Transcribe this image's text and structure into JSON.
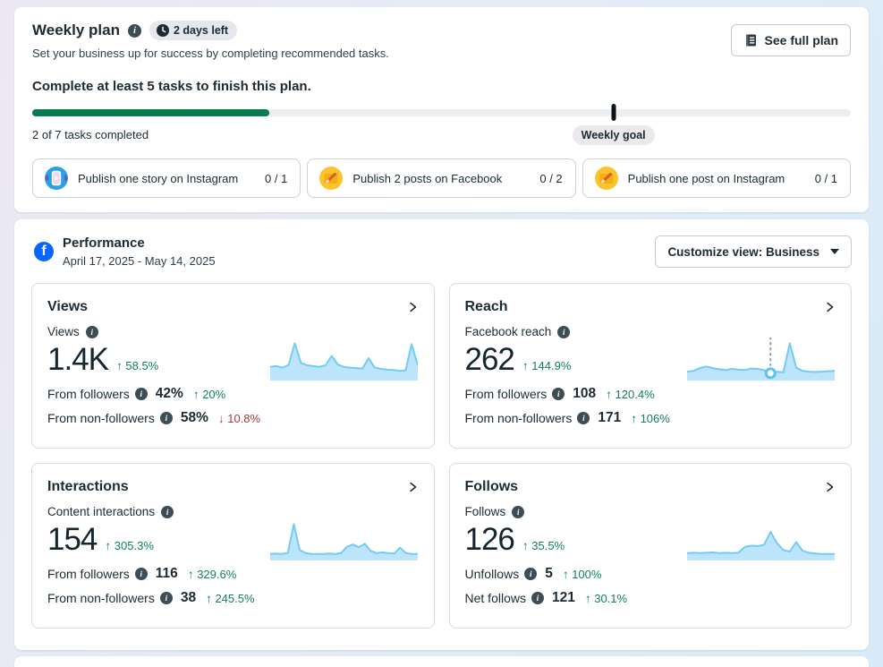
{
  "weekly_plan": {
    "title": "Weekly plan",
    "badge": "2 days left",
    "see_full_plan_label": "See full plan",
    "subtitle": "Set your business up for success by completing recommended tasks.",
    "goal_heading": "Complete at least 5 tasks to finish this plan.",
    "progress": {
      "completed": 2,
      "total": 7,
      "percent": 29,
      "goal_percent": 71,
      "status_text": "2 of 7 tasks completed",
      "goal_label": "Weekly goal"
    },
    "tasks": [
      {
        "label": "Publish one story on Instagram",
        "count": "0 / 1",
        "icon": "instagram-story-icon"
      },
      {
        "label": "Publish 2 posts on Facebook",
        "count": "0 / 2",
        "icon": "facebook-post-icon"
      },
      {
        "label": "Publish one post on Instagram",
        "count": "0 / 1",
        "icon": "instagram-post-icon"
      }
    ]
  },
  "performance": {
    "title": "Performance",
    "date_range": "April 17, 2025 - May 14, 2025",
    "customize_label": "Customize view: Business",
    "cards": [
      {
        "title": "Views",
        "metric_label": "Views",
        "value": "1.4K",
        "arrow": "↑",
        "delta": "58.5%",
        "stats": [
          {
            "label": "From followers",
            "value": "42%",
            "arrow": "↑",
            "delta": "20%",
            "dir": "up"
          },
          {
            "label": "From non-followers",
            "value": "58%",
            "arrow": "↓",
            "delta": "10.8%",
            "dir": "down"
          }
        ],
        "spark": {
          "values": [
            30,
            32,
            28,
            35,
            90,
            40,
            34,
            32,
            30,
            34,
            58,
            36,
            30,
            28,
            27,
            26,
            52,
            28,
            25,
            23,
            22,
            20,
            21,
            88,
            34
          ]
        }
      },
      {
        "title": "Reach",
        "metric_label": "Facebook reach",
        "value": "262",
        "arrow": "↑",
        "delta": "144.9%",
        "stats": [
          {
            "label": "From followers",
            "value": "108",
            "arrow": "↑",
            "delta": "120.4%",
            "dir": "up"
          },
          {
            "label": "From non-followers",
            "value": "171",
            "arrow": "↑",
            "delta": "106%",
            "dir": "up"
          }
        ],
        "spark": {
          "values": [
            18,
            20,
            27,
            31,
            27,
            24,
            22,
            25,
            23,
            22,
            26,
            25,
            22,
            14,
            18,
            16,
            90,
            28,
            20,
            18,
            17,
            18,
            19,
            20
          ],
          "marker": 13
        }
      },
      {
        "title": "Interactions",
        "metric_label": "Content interactions",
        "value": "154",
        "arrow": "↑",
        "delta": "305.3%",
        "stats": [
          {
            "label": "From followers",
            "value": "116",
            "arrow": "↑",
            "delta": "329.6%",
            "dir": "up"
          },
          {
            "label": "From non-followers",
            "value": "38",
            "arrow": "↑",
            "delta": "245.5%",
            "dir": "up"
          }
        ],
        "spark": {
          "values": [
            12,
            13,
            12,
            15,
            88,
            22,
            14,
            12,
            12,
            12,
            13,
            12,
            14,
            30,
            36,
            29,
            38,
            20,
            14,
            16,
            14,
            13,
            28,
            14,
            12,
            12
          ]
        }
      },
      {
        "title": "Follows",
        "metric_label": "Follows",
        "value": "126",
        "arrow": "↑",
        "delta": "35.5%",
        "stats": [
          {
            "label": "Unfollows",
            "value": "5",
            "arrow": "↑",
            "delta": "100%",
            "dir": "up"
          },
          {
            "label": "Net follows",
            "value": "121",
            "arrow": "↑",
            "delta": "30.1%",
            "dir": "up"
          }
        ],
        "spark": {
          "values": [
            14,
            15,
            14,
            15,
            16,
            14,
            15,
            14,
            15,
            30,
            33,
            32,
            35,
            68,
            40,
            22,
            18,
            42,
            20,
            15,
            13,
            12,
            12,
            12
          ]
        }
      }
    ]
  },
  "colors": {
    "positive_green": "#12805c",
    "negative_red": "#a43d3d",
    "progress_green": "#0b7b4f",
    "sparkline_stroke": "#72ccf4",
    "sparkline_fill": "#bce4fa",
    "facebook_blue": "#0866ff"
  }
}
